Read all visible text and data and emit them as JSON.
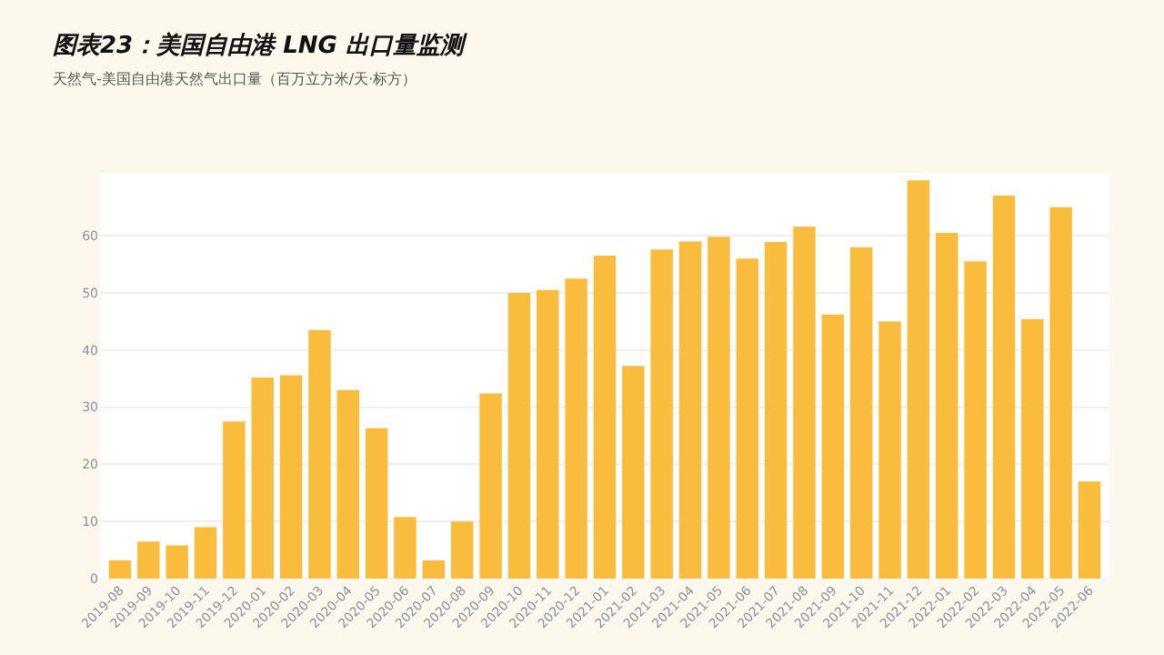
{
  "chart_data": {
    "type": "bar",
    "title": "图表23：美国自由港 LNG 出口量监测",
    "subtitle": "天然气-美国自由港天然气出口量（百万立方米/天·标方）",
    "categories": [
      "2019-08",
      "2019-09",
      "2019-10",
      "2019-11",
      "2019-12",
      "2020-01",
      "2020-02",
      "2020-03",
      "2020-04",
      "2020-05",
      "2020-06",
      "2020-07",
      "2020-08",
      "2020-09",
      "2020-10",
      "2020-11",
      "2020-12",
      "2021-01",
      "2021-02",
      "2021-03",
      "2021-04",
      "2021-05",
      "2021-06",
      "2021-07",
      "2021-08",
      "2021-09",
      "2021-10",
      "2021-11",
      "2021-12",
      "2022-01",
      "2022-02",
      "2022-03",
      "2022-04",
      "2022-05",
      "2022-06"
    ],
    "values": [
      3.2,
      6.5,
      5.8,
      9,
      27.5,
      35.2,
      35.6,
      43.5,
      33,
      26.3,
      10.8,
      3.2,
      10,
      32.4,
      50,
      50.5,
      52.5,
      56.5,
      37.2,
      57.6,
      59,
      59.8,
      56,
      58.9,
      61.6,
      46.2,
      58,
      45,
      69.7,
      60.5,
      55.5,
      67,
      45.4,
      65,
      17
    ],
    "color": "#f9bc3c",
    "ylim": [
      0,
      71
    ],
    "yticks": [
      0,
      10,
      20,
      30,
      40,
      50,
      60
    ],
    "grid": "y"
  }
}
